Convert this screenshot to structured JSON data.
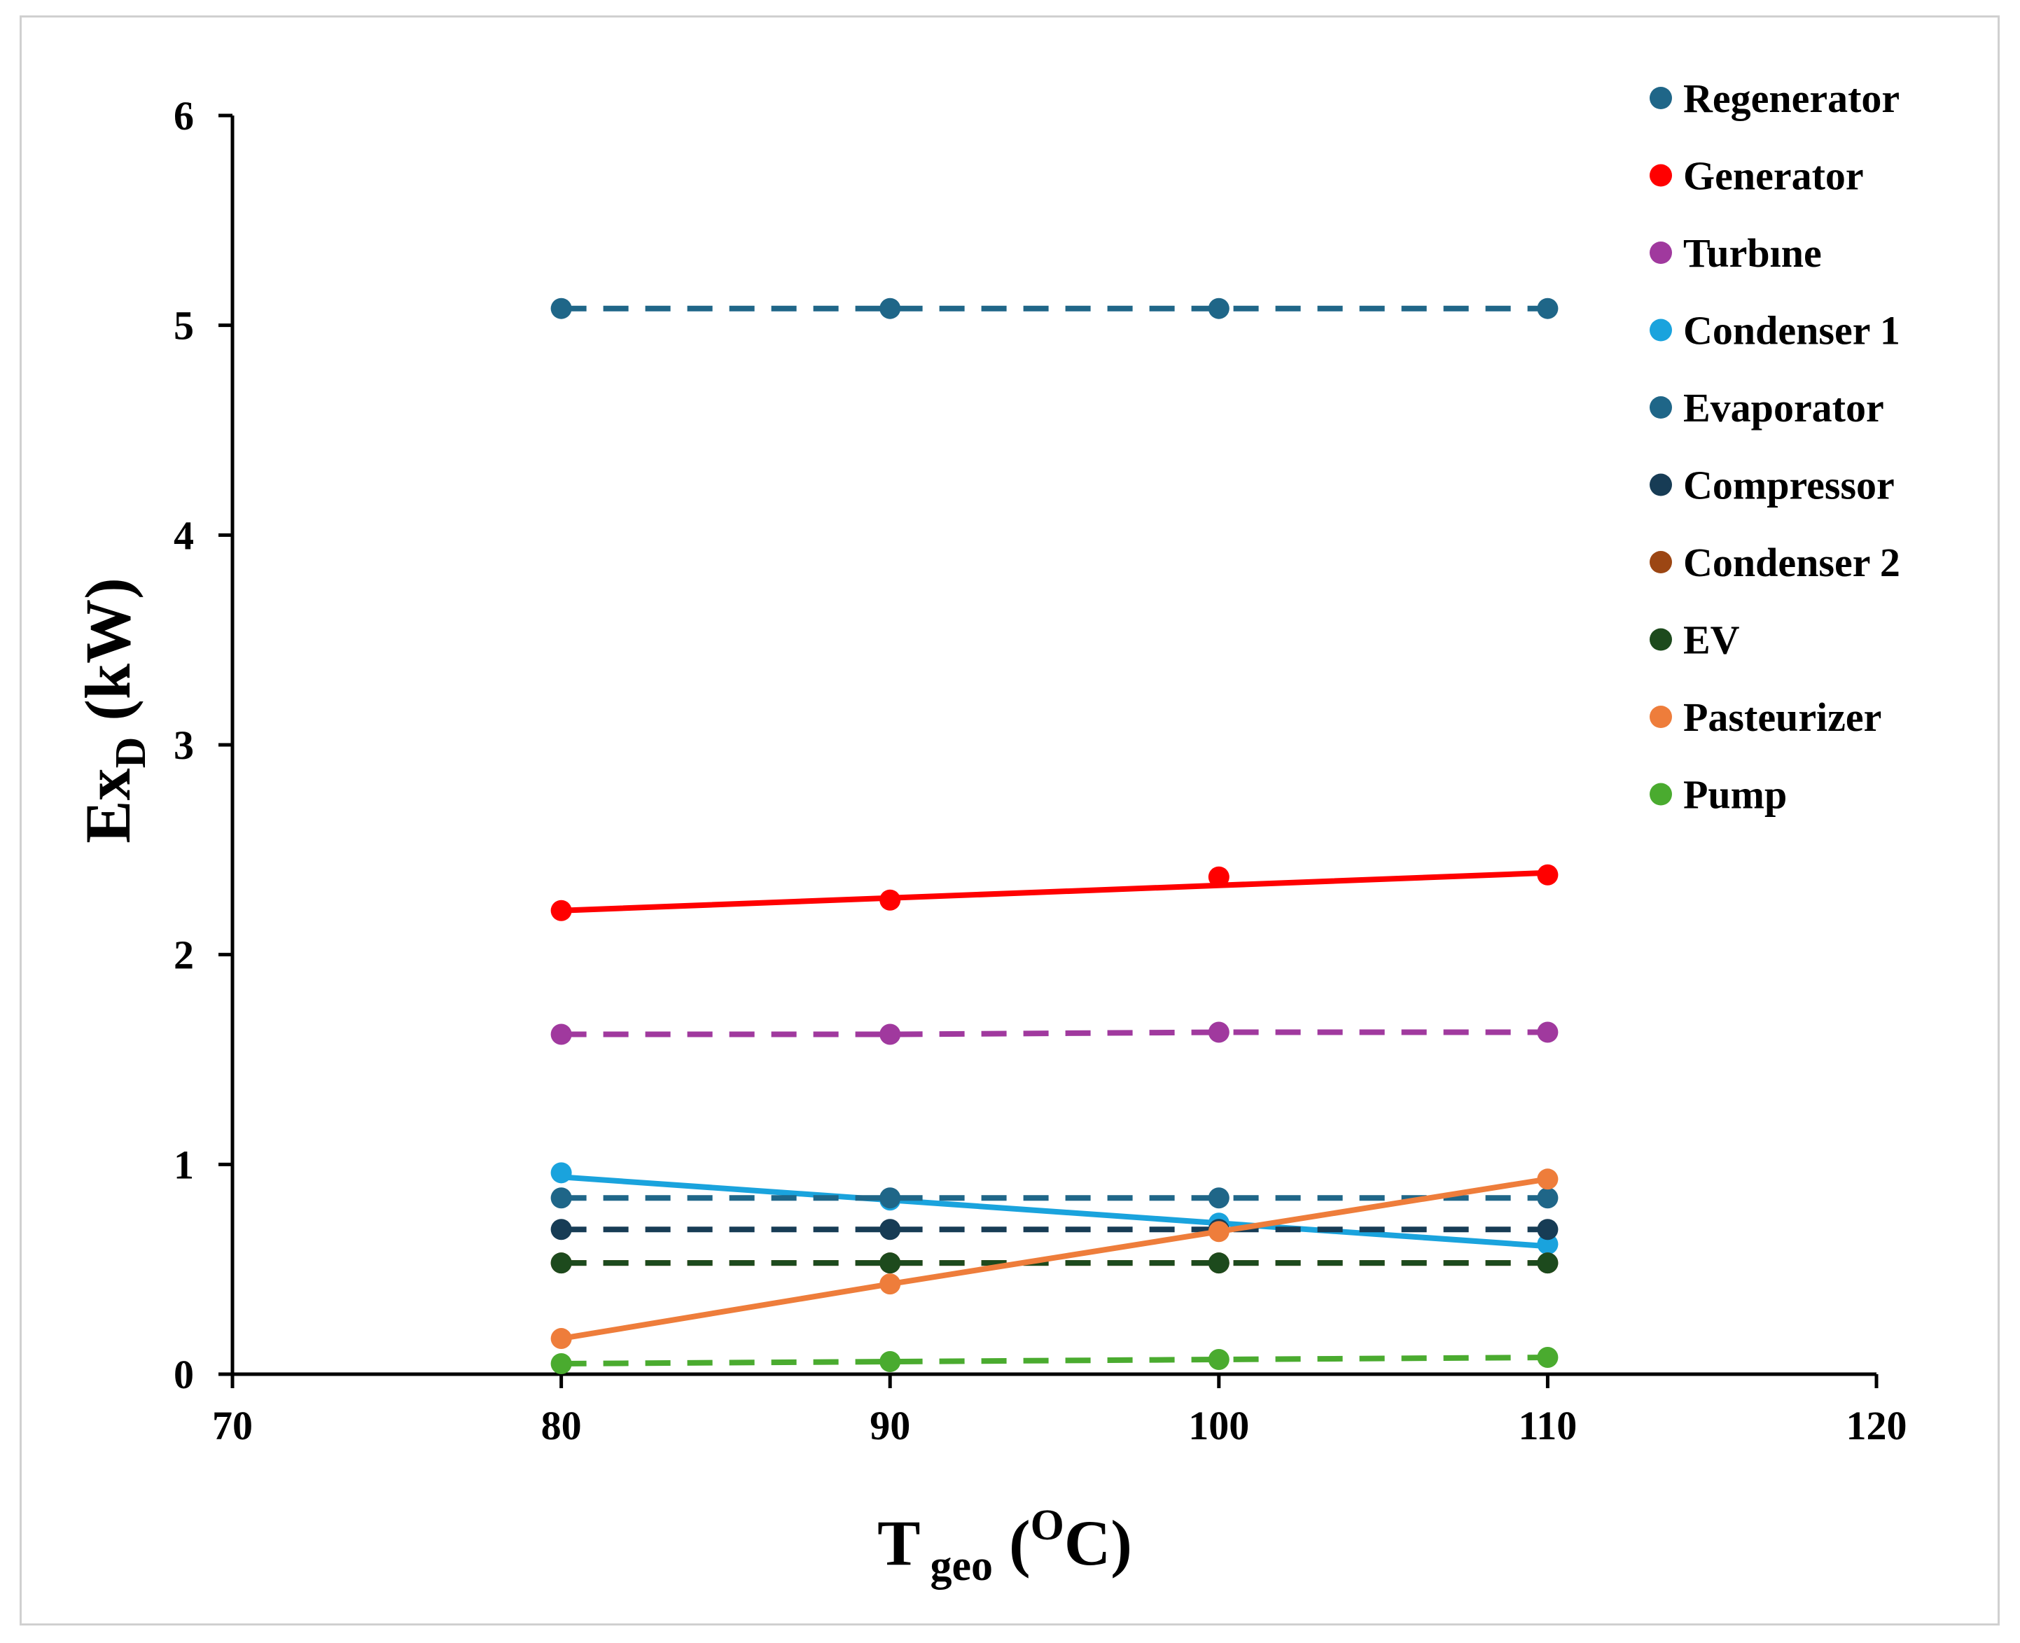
{
  "chart_data": {
    "type": "line",
    "title": "",
    "xlabel": {
      "main": "T",
      "sub": "geo",
      "unit_open": " (",
      "unit_sup": "O",
      "unit_rest": "C)"
    },
    "ylabel": {
      "main": "Ex",
      "sub": "D",
      "unit": " (kW)"
    },
    "xlim": [
      70,
      120
    ],
    "ylim": [
      0,
      6
    ],
    "xticks": [
      70,
      80,
      90,
      100,
      110,
      120
    ],
    "yticks": [
      0,
      1,
      2,
      3,
      4,
      5,
      6
    ],
    "grid": false,
    "legend_position": "top-right",
    "x": [
      80,
      90,
      100,
      110
    ],
    "series": [
      {
        "name": "Regenerator",
        "color": "#1f6688",
        "dash": true,
        "marker_color": "#1f6688",
        "values": [
          5.08,
          5.08,
          5.08,
          5.08
        ]
      },
      {
        "name": "Generator",
        "color": "#ff0000",
        "dash": false,
        "marker_color": "#ff0000",
        "values": [
          2.21,
          2.26,
          2.37,
          2.38
        ],
        "fit": [
          2.21,
          2.27,
          2.33,
          2.39
        ]
      },
      {
        "name": "Turbıne",
        "color": "#a0399e",
        "dash": true,
        "marker_color": "#a0399e",
        "values": [
          1.62,
          1.62,
          1.63,
          1.63
        ]
      },
      {
        "name": "Condenser 1",
        "color": "#1aa3dd",
        "dash": false,
        "marker_color": "#1aa3dd",
        "values": [
          0.96,
          0.83,
          0.72,
          0.62
        ],
        "fit": [
          0.94,
          0.83,
          0.72,
          0.61
        ]
      },
      {
        "name": "Evaporator",
        "color": "#1f6688",
        "dash": true,
        "marker_color": "#1f6688",
        "values": [
          0.84,
          0.84,
          0.84,
          0.84
        ]
      },
      {
        "name": "Compressor",
        "color": "#173c55",
        "dash": true,
        "marker_color": "#173c55",
        "values": [
          0.69,
          0.69,
          0.69,
          0.69
        ]
      },
      {
        "name": "Condenser 2",
        "color": "#9c4613",
        "dash": true,
        "marker_color": "#9c4613",
        "values": [
          0.53,
          0.53,
          0.53,
          0.53
        ]
      },
      {
        "name": "EV",
        "color": "#1d4a1d",
        "dash": true,
        "marker_color": "#1d4a1d",
        "values": [
          0.53,
          0.53,
          0.53,
          0.53
        ]
      },
      {
        "name": "Pasteurizer",
        "color": "#ee7d3b",
        "dash": false,
        "marker_color": "#ee7d3b",
        "values": [
          0.17,
          0.43,
          0.68,
          0.93
        ]
      },
      {
        "name": "Pump",
        "color": "#4aab2f",
        "dash": true,
        "marker_color": "#4aab2f",
        "values": [
          0.05,
          0.06,
          0.07,
          0.08
        ]
      }
    ]
  }
}
